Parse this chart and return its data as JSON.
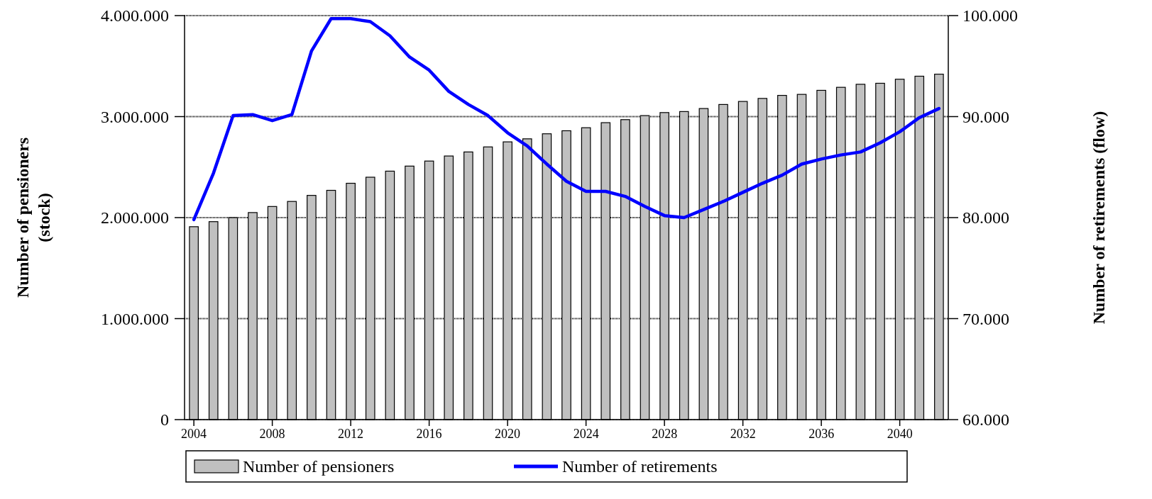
{
  "chart_data": {
    "type": "bar",
    "categories": [
      "2004",
      null,
      null,
      null,
      "2008",
      null,
      null,
      null,
      "2012",
      null,
      null,
      null,
      "2016",
      null,
      null,
      null,
      "2020",
      null,
      null,
      null,
      "2024",
      null,
      null,
      null,
      "2028",
      null,
      null,
      null,
      "2032",
      null,
      null,
      null,
      "2036",
      null,
      null,
      null,
      "2040",
      null,
      null
    ],
    "ylabel": "Number of pensioners (stock)",
    "y2label": "Number of retirements (flow)",
    "ylim": [
      0,
      4000000
    ],
    "yticks": [
      {
        "value": 0,
        "label": "0"
      },
      {
        "value": 1000000,
        "label": "1.000.000"
      },
      {
        "value": 2000000,
        "label": "2.000.000"
      },
      {
        "value": 3000000,
        "label": "3.000.000"
      },
      {
        "value": 4000000,
        "label": "4.000.000"
      }
    ],
    "y2lim": [
      60000,
      100000
    ],
    "y2ticks": [
      {
        "value": 60000,
        "label": "60.000"
      },
      {
        "value": 70000,
        "label": "70.000"
      },
      {
        "value": 80000,
        "label": "80.000"
      },
      {
        "value": 90000,
        "label": "90.000"
      },
      {
        "value": 100000,
        "label": "100.000"
      }
    ],
    "grid": "y",
    "legend": "bottom",
    "series": [
      {
        "name": "Number of pensioners",
        "color": "#c0c0c0",
        "values": [
          1910000,
          1960000,
          2000000,
          2050000,
          2110000,
          2160000,
          2220000,
          2270000,
          2340000,
          2400000,
          2460000,
          2510000,
          2560000,
          2610000,
          2650000,
          2700000,
          2750000,
          2780000,
          2830000,
          2860000,
          2890000,
          2940000,
          2970000,
          3010000,
          3040000,
          3050000,
          3080000,
          3120000,
          3150000,
          3180000,
          3210000,
          3220000,
          3260000,
          3290000,
          3320000,
          3330000,
          3370000,
          3400000,
          3420000
        ]
      },
      {
        "name": "Number of retirements",
        "type": "line",
        "axis": "y2",
        "color": "#0000ff",
        "values": [
          79800,
          84400,
          90100,
          90200,
          89600,
          90200,
          96500,
          99700,
          99700,
          99400,
          98000,
          95900,
          94600,
          92500,
          91200,
          90100,
          88400,
          87100,
          85300,
          83600,
          82600,
          82600,
          82100,
          81100,
          80200,
          80000,
          80800,
          81600,
          82500,
          83400,
          84200,
          85300,
          85800,
          86200,
          86500,
          87400,
          88500,
          89900,
          90800
        ]
      }
    ]
  }
}
